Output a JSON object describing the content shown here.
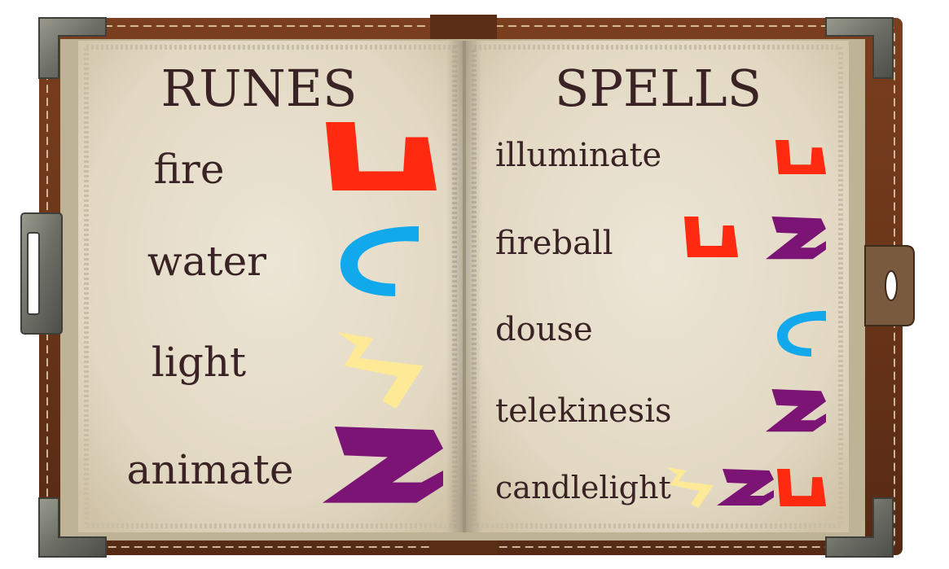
{
  "runes_page": {
    "title": "RUNES",
    "runes": [
      {
        "label": "fire",
        "rune": "fire-rune",
        "color": "#ff2a10"
      },
      {
        "label": "water",
        "rune": "water-rune",
        "color": "#12a9ec"
      },
      {
        "label": "light",
        "rune": "light-rune",
        "color": "#fde996"
      },
      {
        "label": "animate",
        "rune": "animate-rune",
        "color": "#7b1475"
      }
    ]
  },
  "spells_page": {
    "title": "SPELLS",
    "spells": [
      {
        "label": "illuminate",
        "runes": [
          "fire"
        ]
      },
      {
        "label": "fireball",
        "runes": [
          "fire",
          "animate"
        ]
      },
      {
        "label": "douse",
        "runes": [
          "water"
        ]
      },
      {
        "label": "telekinesis",
        "runes": [
          "animate"
        ]
      },
      {
        "label": "candlelight",
        "runes": [
          "light",
          "animate",
          "fire"
        ]
      }
    ]
  },
  "colors": {
    "fire": "#ff2a10",
    "water": "#12a9ec",
    "light": "#fde996",
    "animate": "#7b1475",
    "ink": "#3a2325",
    "parchment": "#e6ddc9",
    "leather": "#6a3519"
  }
}
